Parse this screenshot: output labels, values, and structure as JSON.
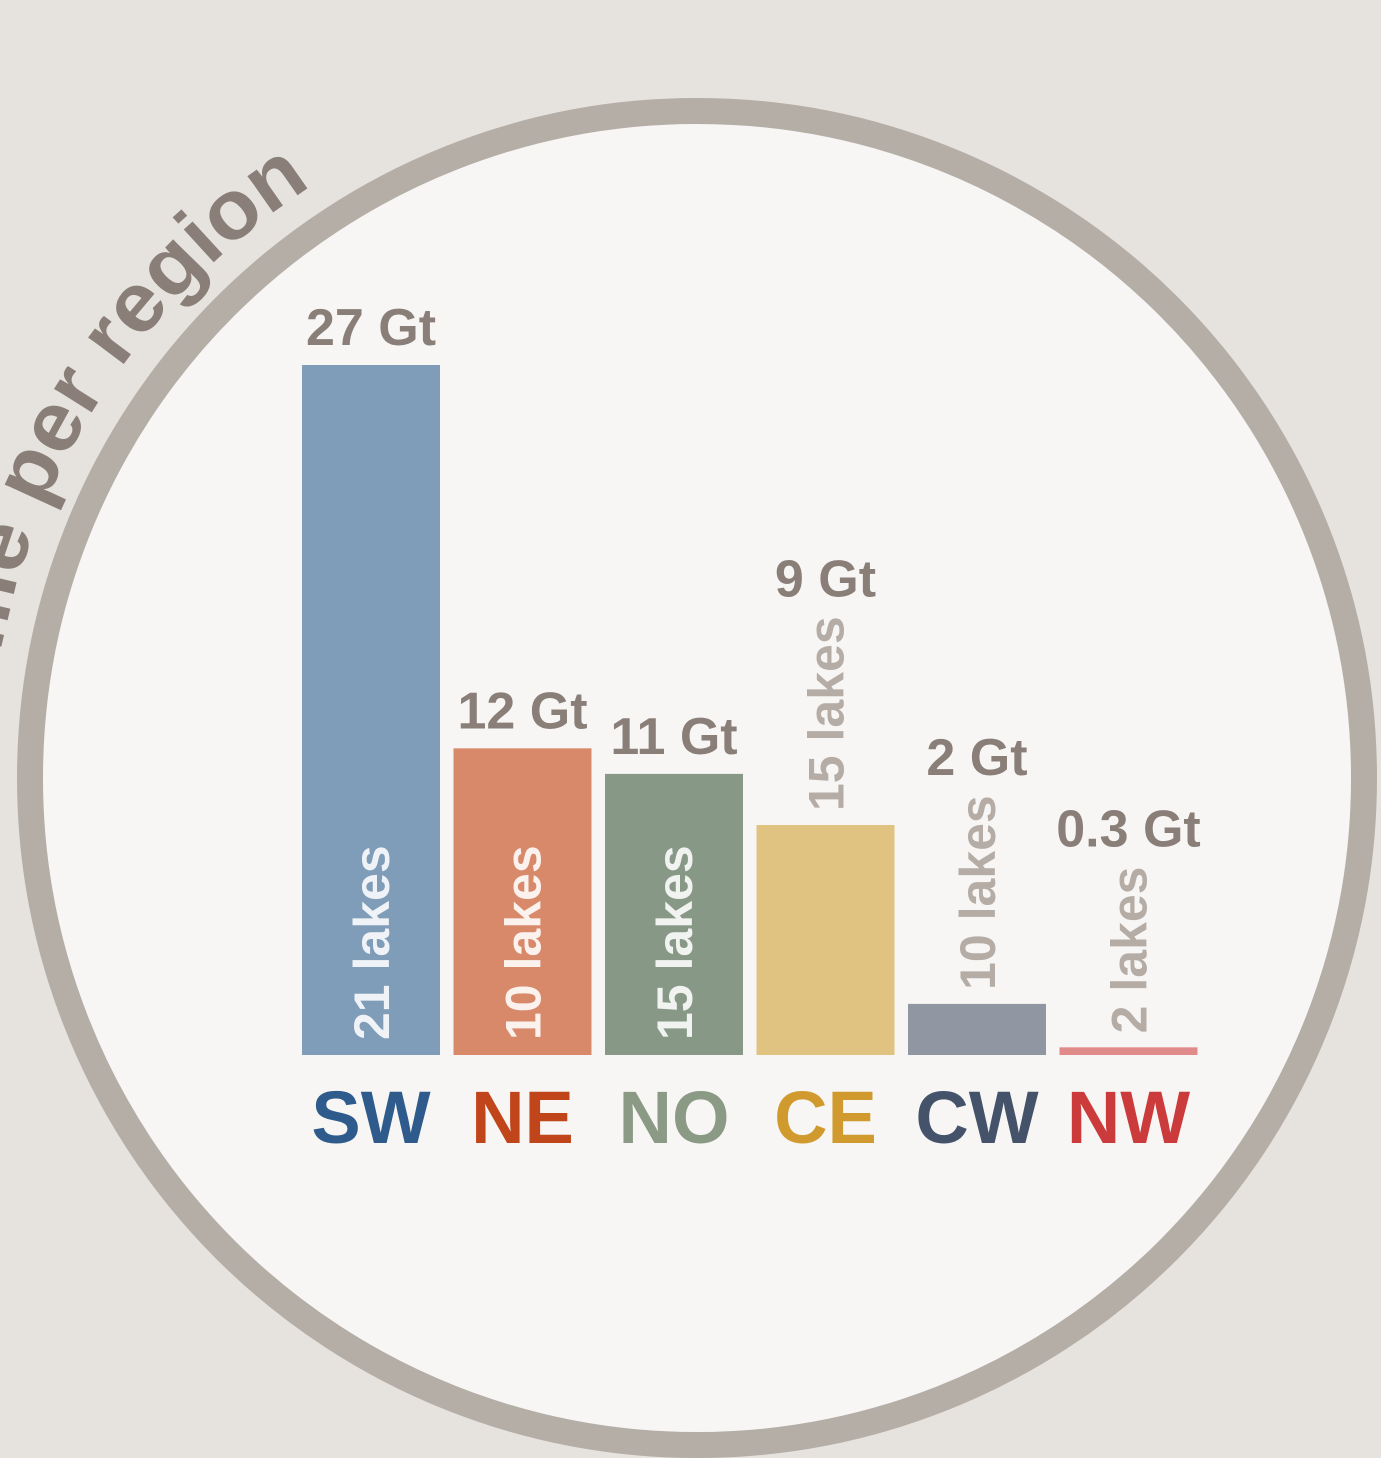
{
  "chart_data": {
    "type": "bar",
    "title": "Volume per region",
    "categories": [
      "SW",
      "NE",
      "NO",
      "CE",
      "CW",
      "NW"
    ],
    "values": [
      27,
      12,
      11,
      9,
      2,
      0.3
    ],
    "value_labels": [
      "27 Gt",
      "12 Gt",
      "11 Gt",
      "9 Gt",
      "2 Gt",
      "0.3 Gt"
    ],
    "bar_labels": [
      "21 lakes",
      "10 lakes",
      "15 lakes",
      "15 lakes",
      "10 lakes",
      "2 lakes"
    ],
    "colors": [
      "#7f9cb8",
      "#d8896a",
      "#889886",
      "#e0c380",
      "#9096a2",
      "#e08a8a"
    ],
    "category_colors": [
      "#2e5b8c",
      "#c0451b",
      "#8a9a85",
      "#d19a2e",
      "#45536a",
      "#cc3b3b"
    ]
  }
}
